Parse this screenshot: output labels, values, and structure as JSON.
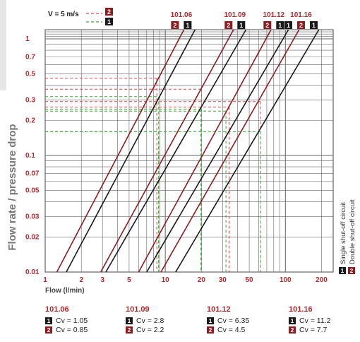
{
  "chart_data": {
    "type": "line",
    "ylabel": "Flow rate / pressure drop",
    "xlabel": "Flow  (l/min)",
    "xscale": "log",
    "yscale": "log",
    "xlim": [
      1,
      250
    ],
    "ylim": [
      0.01,
      1.2
    ],
    "x_tick_labels": [
      "1",
      "2",
      "3",
      "5",
      "10",
      "20",
      "30",
      "50",
      "100",
      "200"
    ],
    "x_ticks": [
      1,
      2,
      3,
      5,
      10,
      20,
      30,
      50,
      100,
      200
    ],
    "y_tick_labels": [
      "1",
      "0.7",
      "0.5",
      "0.3",
      "0.2",
      "0.1",
      "0.07",
      "0.05",
      "0.03",
      "0.02",
      "0.01"
    ],
    "y_ticks": [
      1,
      0.7,
      0.5,
      0.3,
      0.2,
      0.1,
      0.07,
      0.05,
      0.03,
      0.02,
      0.01
    ],
    "velocity_legend": {
      "label": "V = 5 m/s",
      "red_badge": "2",
      "green_badge": "1"
    },
    "series": [
      {
        "name": "101.06",
        "circuit": "1",
        "cv": 1.05,
        "color": "#1a1a1a",
        "x_at_min": 1.5,
        "x_at_max": 17.7
      },
      {
        "name": "101.06",
        "circuit": "2",
        "cv": 0.85,
        "color": "#8b1c1f",
        "x_at_min": 1.25,
        "x_at_max": 14.3
      },
      {
        "name": "101.09",
        "circuit": "1",
        "cv": 2.8,
        "color": "#1a1a1a",
        "x_at_min": 3.2,
        "x_at_max": 47.0
      },
      {
        "name": "101.09",
        "circuit": "2",
        "cv": 2.2,
        "color": "#8b1c1f",
        "x_at_min": 2.9,
        "x_at_max": 37.0
      },
      {
        "name": "101.12",
        "circuit": "1",
        "cv": 6.35,
        "color": "#1a1a1a",
        "x_at_min": 7.0,
        "x_at_max": 106.0
      },
      {
        "name": "101.12",
        "circuit": "2",
        "cv": 4.5,
        "color": "#8b1c1f",
        "x_at_min": 6.0,
        "x_at_max": 76.0
      },
      {
        "name": "101.16",
        "circuit": "1",
        "cv": 11.2,
        "color": "#1a1a1a",
        "x_at_min": 12.2,
        "x_at_max": 190.0
      },
      {
        "name": "101.16",
        "circuit": "2",
        "cv": 7.7,
        "color": "#8b1c1f",
        "x_at_min": 9.2,
        "x_at_max": 130.0
      }
    ],
    "top_labels": [
      {
        "model": "101.06",
        "badges": [
          "2",
          "1"
        ],
        "x_value": 13.6
      },
      {
        "model": "101.09",
        "badges": [
          "2",
          "1"
        ],
        "x_value": 38.0
      },
      {
        "model": "101.12",
        "badges": [
          "2",
          "1"
        ],
        "x_value": 80.0
      },
      {
        "model": "101.16",
        "badges": [
          "1",
          "2",
          "1"
        ],
        "x_value": 135.0
      }
    ],
    "reference_lines": [
      {
        "color": "red",
        "x": 8.5,
        "y": 0.46
      },
      {
        "color": "green",
        "x": 8.8,
        "y": 0.32
      },
      {
        "color": "red",
        "x": 20.0,
        "y": 0.37
      },
      {
        "color": "green",
        "x": 19.8,
        "y": 0.25
      },
      {
        "color": "red",
        "x": 34.0,
        "y": 0.26
      },
      {
        "color": "green",
        "x": 32.0,
        "y": 0.24
      },
      {
        "color": "red",
        "x": 62.0,
        "y": 0.29
      },
      {
        "color": "green",
        "x": 62.0,
        "y": 0.16
      },
      {
        "color": "green",
        "x": 8.8,
        "y": 0.16
      }
    ],
    "side_legend": {
      "b1_text": "Single shut-off circuit",
      "b2_text": "Double shut-off circuit",
      "b1": "1",
      "b2": "2"
    },
    "grid": true
  },
  "cv_legend": [
    {
      "model": "101.06",
      "b1": "1",
      "b2": "2",
      "cv1": "Cv = 1.05",
      "cv2": "Cv = 0.85"
    },
    {
      "model": "101.09",
      "b1": "1",
      "b2": "2",
      "cv1": "Cv = 2.8",
      "cv2": "Cv = 2.2"
    },
    {
      "model": "101.12",
      "b1": "1",
      "b2": "2",
      "cv1": "Cv = 6.35",
      "cv2": "Cv = 4.5"
    },
    {
      "model": "101.16",
      "b1": "1",
      "b2": "2",
      "cv1": "Cv = 11.2",
      "cv2": "Cv = 7.7"
    }
  ],
  "colors": {
    "red_text": "#b3282d",
    "dark_red_line": "#8b1c1f",
    "black_line": "#1a1a1a",
    "green_dash": "#3aa83a",
    "red_dash": "#e0474c",
    "grid": "#555555"
  }
}
